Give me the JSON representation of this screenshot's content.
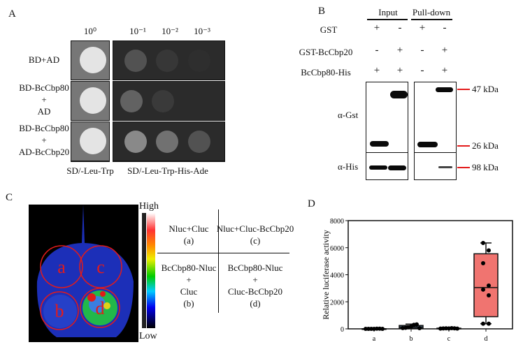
{
  "panelA": {
    "label": "A",
    "dilutions": [
      "10⁰",
      "10⁻¹",
      "10⁻²",
      "10⁻³"
    ],
    "rows": [
      {
        "lines": [
          "BD+AD"
        ]
      },
      {
        "lines": [
          "BD-BcCbp80",
          "+",
          "AD"
        ]
      },
      {
        "lines": [
          "BD-BcCbp80",
          "+",
          "AD-BcCbp20"
        ]
      }
    ],
    "media": [
      "SD/-Leu-Trp",
      "SD/-Leu-Trp-His-Ade"
    ]
  },
  "panelB": {
    "label": "B",
    "groups": [
      "Input",
      "Pull-down"
    ],
    "rows": [
      {
        "name": "GST",
        "signs": [
          "+",
          "-",
          "+",
          "-"
        ]
      },
      {
        "name": "GST-BcCbp20",
        "signs": [
          "-",
          "+",
          "-",
          "+"
        ]
      },
      {
        "name": "BcCbp80-His",
        "signs": [
          "+",
          "+",
          "-",
          "+"
        ]
      }
    ],
    "antibodies": [
      "α-Gst",
      "α-His"
    ],
    "markers": [
      "47 kDa",
      "26 kDa",
      "98 kDa"
    ]
  },
  "panelC": {
    "label": "C",
    "scale_high": "High",
    "scale_low": "Low",
    "spot_labels": [
      "a",
      "c",
      "b",
      "d"
    ],
    "cells": [
      {
        "lines": [
          "Nluc+Cluc",
          "(a)"
        ]
      },
      {
        "lines": [
          "Nluc+Cluc-BcCbp20",
          "(c)"
        ]
      },
      {
        "lines": [
          "BcCbp80-Nluc",
          "+",
          "Cluc",
          "(b)"
        ]
      },
      {
        "lines": [
          "BcCbp80-Nluc",
          "+",
          "Cluc-BcCbp20",
          "(d)"
        ]
      }
    ]
  },
  "panelD": {
    "label": "D"
  },
  "chart_data": {
    "type": "box",
    "ylabel": "Relative luciferase activity",
    "xlabel": "",
    "ylim": [
      0,
      8000
    ],
    "yticks": [
      "0",
      "2000",
      "4000",
      "6000",
      "8000"
    ],
    "categories": [
      "a",
      "b",
      "c",
      "d"
    ],
    "box_colors": [
      "#1a1a1a",
      "#7ab0e0",
      "#1a1a1a",
      "#f07470"
    ],
    "boxes": [
      {
        "min": 0,
        "q1": 0,
        "median": 0,
        "q3": 10,
        "max": 20
      },
      {
        "min": 50,
        "q1": 60,
        "median": 150,
        "q3": 250,
        "max": 350
      },
      {
        "min": 10,
        "q1": 20,
        "median": 30,
        "q3": 50,
        "max": 60
      },
      {
        "min": 380,
        "q1": 900,
        "median": 3050,
        "q3": 5550,
        "max": 6350
      }
    ],
    "points": [
      [
        0,
        0,
        0,
        0,
        10,
        10,
        0
      ],
      [
        60,
        80,
        120,
        180,
        300,
        330,
        50
      ],
      [
        20,
        30,
        40,
        30,
        50,
        40,
        20
      ],
      [
        6350,
        5800,
        4850,
        3200,
        2900,
        2480,
        380,
        380
      ]
    ]
  }
}
